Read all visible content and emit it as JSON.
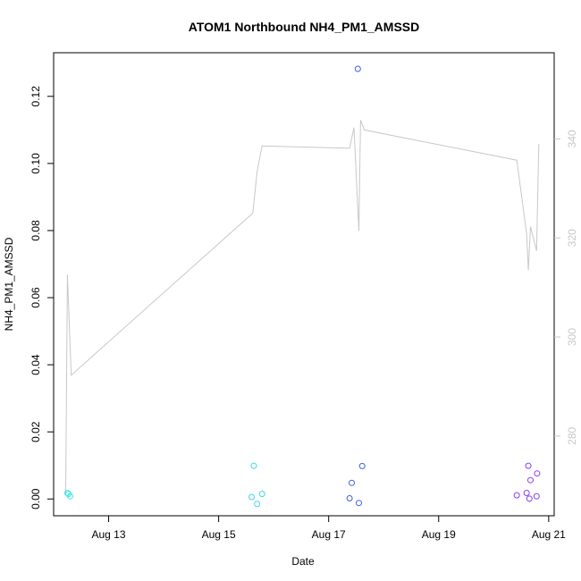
{
  "chart_data": {
    "type": "scatter",
    "title": "ATOM1 Northbound NH4_PM1_AMSSD",
    "xlabel": "Date",
    "ylabel": "NH4_PM1_AMSSD",
    "x_ticks": [
      "Aug 13",
      "Aug 15",
      "Aug 17",
      "Aug 19",
      "Aug 21"
    ],
    "x_tick_values": [
      13,
      15,
      17,
      19,
      21
    ],
    "xlim": [
      12.0,
      21.1
    ],
    "ylim": [
      -0.005,
      0.133
    ],
    "y_ticks": [
      "0.00",
      "0.02",
      "0.04",
      "0.06",
      "0.08",
      "0.10",
      "0.12"
    ],
    "y_tick_values": [
      0.0,
      0.02,
      0.04,
      0.06,
      0.08,
      0.1,
      0.12
    ],
    "y2lim": [
      263.9,
      357.4
    ],
    "y2_ticks": [
      "280",
      "300",
      "320",
      "340"
    ],
    "y2_tick_values": [
      280,
      300,
      320,
      340
    ],
    "grid": false,
    "series": [
      {
        "color": "#3fe8e2",
        "points": [
          [
            12.25,
            0.0018
          ],
          [
            12.27,
            0.0015
          ],
          [
            12.3,
            0.0008
          ]
        ]
      },
      {
        "color": "#3fd7e8",
        "points": [
          [
            15.6,
            0.0006
          ],
          [
            15.64,
            0.0099
          ],
          [
            15.7,
            -0.0015
          ],
          [
            15.79,
            0.0015
          ]
        ]
      },
      {
        "color": "#3f5ee8",
        "points": [
          [
            17.38,
            0.0002
          ],
          [
            17.42,
            0.0048
          ],
          [
            17.53,
            0.1282
          ],
          [
            17.55,
            -0.0012
          ],
          [
            17.61,
            0.0098
          ]
        ]
      },
      {
        "color": "#8a3fe8",
        "points": [
          [
            20.42,
            0.0011
          ],
          [
            20.6,
            0.0018
          ],
          [
            20.63,
            0.0099
          ],
          [
            20.65,
            0.0001
          ],
          [
            20.67,
            0.0056
          ],
          [
            20.78,
            0.0008
          ],
          [
            20.79,
            0.0076
          ]
        ]
      }
    ],
    "line_series": {
      "color": "#c8c8c8",
      "axis": "right",
      "points": [
        [
          12.22,
          268.2
        ],
        [
          12.25,
          312.6
        ],
        [
          12.32,
          292.3
        ],
        [
          15.62,
          325.0
        ],
        [
          15.7,
          333.5
        ],
        [
          15.79,
          338.6
        ],
        [
          17.38,
          338.1
        ],
        [
          17.46,
          342.3
        ],
        [
          17.55,
          321.4
        ],
        [
          17.58,
          343.8
        ],
        [
          17.65,
          341.8
        ],
        [
          20.42,
          335.7
        ],
        [
          20.6,
          320.8
        ],
        [
          20.63,
          313.5
        ],
        [
          20.67,
          322.3
        ],
        [
          20.78,
          317.4
        ],
        [
          20.82,
          339.0
        ]
      ]
    }
  }
}
